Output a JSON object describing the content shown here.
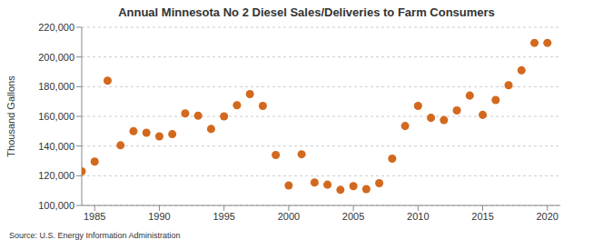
{
  "chart_data": {
    "type": "scatter",
    "title": "Annual Minnesota No 2 Diesel Sales/Deliveries to Farm Consumers",
    "y_label": "Thousand Gallons",
    "source": "Source: U.S. Energy Information Administration",
    "x": [
      1984,
      1985,
      1986,
      1987,
      1988,
      1989,
      1990,
      1991,
      1992,
      1993,
      1994,
      1995,
      1996,
      1997,
      1998,
      1999,
      2000,
      2001,
      2002,
      2003,
      2004,
      2005,
      2006,
      2007,
      2008,
      2009,
      2010,
      2011,
      2012,
      2013,
      2014,
      2015,
      2016,
      2017,
      2018,
      2019,
      2020
    ],
    "values": [
      123000,
      129500,
      184000,
      140500,
      150000,
      149000,
      146500,
      148000,
      162000,
      160500,
      151500,
      160000,
      167500,
      175000,
      167000,
      134000,
      113500,
      134500,
      115500,
      114000,
      110500,
      113000,
      111000,
      115000,
      131500,
      153500,
      167000,
      159000,
      157500,
      164000,
      174000,
      161000,
      171000,
      181000,
      191000,
      209500,
      209500
    ],
    "color": "#d2691e",
    "marker": "circle",
    "xlim": [
      1984,
      2021
    ],
    "xticks": [
      1985,
      1990,
      1995,
      2000,
      2005,
      2010,
      2015,
      2020
    ],
    "ylim": [
      100000,
      220000
    ],
    "yticks": [
      {
        "value": 100000,
        "label": "100,000"
      },
      {
        "value": 120000,
        "label": "120,000"
      },
      {
        "value": 140000,
        "label": "140,000"
      },
      {
        "value": 160000,
        "label": "160,000"
      },
      {
        "value": 180000,
        "label": "180,000"
      },
      {
        "value": 200000,
        "label": "200,000"
      },
      {
        "value": 220000,
        "label": "220,000"
      }
    ],
    "grid": true
  }
}
